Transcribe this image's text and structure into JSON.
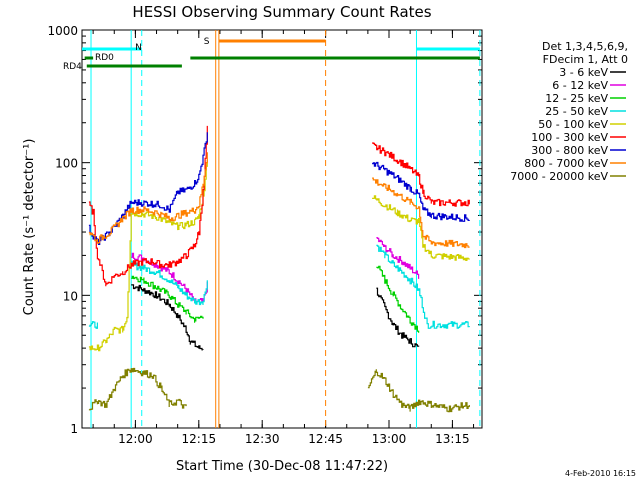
{
  "page": {
    "footer_date": "4-Feb-2010 16:15"
  },
  "chart_data": {
    "type": "line",
    "title": "HESSI Observing Summary Count Rates",
    "xlabel": "Start Time (30-Dec-08 11:47:22)",
    "ylabel": "Count Rate (s⁻¹ detector⁻¹)",
    "y_scale": "log",
    "ylim": [
      1,
      1000
    ],
    "xlim": [
      "11:47:22",
      "13:22:00"
    ],
    "x_ticks": [
      "12:00",
      "12:15",
      "12:30",
      "12:45",
      "13:00",
      "13:15"
    ],
    "y_ticks": [
      "1",
      "10",
      "100",
      "1000"
    ],
    "grid": false,
    "legend": {
      "position": "right",
      "header": [
        "Det 1,3,4,5,6,9,",
        "FDecim 1, Att 0"
      ]
    },
    "series": [
      {
        "name": "3 - 6 keV",
        "color": "#000000",
        "points": [
          [
            "11:53",
            null
          ],
          [
            "11:59",
            12
          ],
          [
            "12:02",
            11
          ],
          [
            "12:05",
            10
          ],
          [
            "12:08",
            8.5
          ],
          [
            "12:10",
            7
          ],
          [
            "12:12",
            5.5
          ],
          [
            "12:13",
            4.5
          ],
          [
            "12:15",
            4
          ],
          [
            "12:16",
            4
          ],
          [
            "12:17",
            null
          ],
          [
            "12:55",
            null
          ],
          [
            "12:57",
            11
          ],
          [
            "12:59",
            8
          ],
          [
            "13:01",
            6
          ],
          [
            "13:03",
            5
          ],
          [
            "13:05",
            4.5
          ],
          [
            "13:07",
            4
          ],
          [
            "13:08",
            null
          ]
        ]
      },
      {
        "name": "6 - 12 keV",
        "color": "#e000e0",
        "points": [
          [
            "11:59",
            20
          ],
          [
            "12:02",
            19
          ],
          [
            "12:05",
            17
          ],
          [
            "12:08",
            15
          ],
          [
            "12:10",
            13
          ],
          [
            "12:12",
            11
          ],
          [
            "12:14",
            9
          ],
          [
            "12:16",
            9
          ],
          [
            "12:17",
            12
          ],
          [
            "12:18",
            null
          ],
          [
            "12:55",
            null
          ],
          [
            "12:57",
            27
          ],
          [
            "12:59",
            23
          ],
          [
            "13:01",
            20
          ],
          [
            "13:03",
            18
          ],
          [
            "13:05",
            16
          ],
          [
            "13:07",
            14
          ],
          [
            "13:08",
            null
          ]
        ]
      },
      {
        "name": "12 - 25 keV",
        "color": "#00d000",
        "points": [
          [
            "11:59",
            14
          ],
          [
            "12:02",
            13
          ],
          [
            "12:05",
            11.5
          ],
          [
            "12:08",
            10
          ],
          [
            "12:10",
            8.5
          ],
          [
            "12:12",
            7.5
          ],
          [
            "12:14",
            6.5
          ],
          [
            "12:16",
            7
          ],
          [
            "12:17",
            null
          ],
          [
            "12:55",
            null
          ],
          [
            "12:57",
            17
          ],
          [
            "12:59",
            13
          ],
          [
            "13:01",
            10
          ],
          [
            "13:03",
            8
          ],
          [
            "13:05",
            6.5
          ],
          [
            "13:07",
            5.5
          ],
          [
            "13:08",
            null
          ]
        ]
      },
      {
        "name": "25 - 50 keV",
        "color": "#00e0e0",
        "points": [
          [
            "11:49",
            6
          ],
          [
            "11:51",
            6
          ],
          [
            "11:53",
            null
          ],
          [
            "11:59",
            17
          ],
          [
            "12:02",
            16
          ],
          [
            "12:05",
            15
          ],
          [
            "12:08",
            13
          ],
          [
            "12:10",
            11.5
          ],
          [
            "12:12",
            10
          ],
          [
            "12:14",
            9
          ],
          [
            "12:16",
            9
          ],
          [
            "12:17",
            13
          ],
          [
            "12:18",
            null
          ],
          [
            "12:55",
            null
          ],
          [
            "12:57",
            24
          ],
          [
            "12:59",
            20
          ],
          [
            "13:01",
            17
          ],
          [
            "13:03",
            15
          ],
          [
            "13:05",
            13
          ],
          [
            "13:07",
            11
          ],
          [
            "13:09",
            6
          ],
          [
            "13:19",
            6
          ]
        ]
      },
      {
        "name": "50 - 100 keV",
        "color": "#d0d000",
        "points": [
          [
            "11:49",
            4
          ],
          [
            "11:51",
            4
          ],
          [
            "11:53",
            4.5
          ],
          [
            "11:55",
            5.5
          ],
          [
            "11:57",
            5.5
          ],
          [
            "11:58",
            7
          ],
          [
            "11:59",
            42
          ],
          [
            "12:02",
            41
          ],
          [
            "12:05",
            39
          ],
          [
            "12:08",
            35
          ],
          [
            "12:10",
            33
          ],
          [
            "12:12",
            34
          ],
          [
            "12:14",
            36
          ],
          [
            "12:15",
            40
          ],
          [
            "12:16",
            55
          ],
          [
            "12:17",
            110
          ],
          [
            "12:18",
            null
          ],
          [
            "12:55",
            null
          ],
          [
            "12:56",
            55
          ],
          [
            "12:59",
            48
          ],
          [
            "13:02",
            42
          ],
          [
            "13:05",
            37
          ],
          [
            "13:07",
            36
          ],
          [
            "13:08",
            24
          ],
          [
            "13:10",
            20
          ],
          [
            "13:19",
            19
          ]
        ]
      },
      {
        "name": "100 - 300 keV",
        "color": "#ff0000",
        "points": [
          [
            "11:49",
            48
          ],
          [
            "11:50",
            42
          ],
          [
            "11:51",
            20
          ],
          [
            "11:53",
            12
          ],
          [
            "11:55",
            14
          ],
          [
            "11:57",
            15
          ],
          [
            "11:59",
            17
          ],
          [
            "12:02",
            18
          ],
          [
            "12:04",
            18
          ],
          [
            "12:06",
            17
          ],
          [
            "12:08",
            17
          ],
          [
            "12:10",
            18
          ],
          [
            "12:12",
            20
          ],
          [
            "12:14",
            24
          ],
          [
            "12:15",
            30
          ],
          [
            "12:16",
            60
          ],
          [
            "12:17",
            180
          ],
          [
            "12:18",
            null
          ],
          [
            "12:55",
            null
          ],
          [
            "12:56",
            135
          ],
          [
            "12:59",
            120
          ],
          [
            "13:02",
            105
          ],
          [
            "13:05",
            90
          ],
          [
            "13:07",
            78
          ],
          [
            "13:08",
            60
          ],
          [
            "13:10",
            50
          ],
          [
            "13:19",
            50
          ]
        ]
      },
      {
        "name": "300 - 800 keV",
        "color": "#0000d0",
        "points": [
          [
            "11:49",
            32
          ],
          [
            "11:50",
            28
          ],
          [
            "11:51",
            25
          ],
          [
            "11:54",
            30
          ],
          [
            "11:57",
            40
          ],
          [
            "11:59",
            50
          ],
          [
            "12:02",
            50
          ],
          [
            "12:04",
            49
          ],
          [
            "12:06",
            48
          ],
          [
            "12:08",
            44
          ],
          [
            "12:10",
            60
          ],
          [
            "12:12",
            62
          ],
          [
            "12:14",
            70
          ],
          [
            "12:15",
            80
          ],
          [
            "12:16",
            110
          ],
          [
            "12:17",
            170
          ],
          [
            "12:18",
            null
          ],
          [
            "12:55",
            null
          ],
          [
            "12:56",
            100
          ],
          [
            "12:59",
            88
          ],
          [
            "13:02",
            76
          ],
          [
            "13:05",
            64
          ],
          [
            "13:07",
            57
          ],
          [
            "13:08",
            44
          ],
          [
            "13:10",
            40
          ],
          [
            "13:19",
            38
          ]
        ]
      },
      {
        "name": "800 - 7000 keV",
        "color": "#ff8000",
        "points": [
          [
            "11:49",
            30
          ],
          [
            "11:51",
            26
          ],
          [
            "11:54",
            30
          ],
          [
            "11:57",
            38
          ],
          [
            "11:59",
            44
          ],
          [
            "12:02",
            44
          ],
          [
            "12:04",
            43
          ],
          [
            "12:06",
            41
          ],
          [
            "12:08",
            38
          ],
          [
            "12:10",
            40
          ],
          [
            "12:12",
            42
          ],
          [
            "12:14",
            44
          ],
          [
            "12:15",
            48
          ],
          [
            "12:16",
            70
          ],
          [
            "12:17",
            120
          ],
          [
            "12:18",
            null
          ],
          [
            "12:55",
            null
          ],
          [
            "12:56",
            75
          ],
          [
            "12:59",
            66
          ],
          [
            "13:02",
            58
          ],
          [
            "13:05",
            50
          ],
          [
            "13:07",
            46
          ],
          [
            "13:08",
            28
          ],
          [
            "13:10",
            25
          ],
          [
            "13:19",
            24
          ]
        ]
      },
      {
        "name": "7000 - 20000 keV",
        "color": "#808000",
        "points": [
          [
            "11:49",
            1.4
          ],
          [
            "11:51",
            1.6
          ],
          [
            "11:53",
            1.5
          ],
          [
            "11:55",
            2
          ],
          [
            "11:57",
            2.5
          ],
          [
            "11:59",
            2.8
          ],
          [
            "12:02",
            2.6
          ],
          [
            "12:04",
            2.5
          ],
          [
            "12:06",
            2
          ],
          [
            "12:08",
            1.5
          ],
          [
            "12:10",
            1.6
          ],
          [
            "12:12",
            1.4
          ],
          [
            "12:13",
            null
          ],
          [
            "12:55",
            null
          ],
          [
            "12:55",
            2
          ],
          [
            "12:57",
            2.7
          ],
          [
            "12:59",
            2.3
          ],
          [
            "13:01",
            1.8
          ],
          [
            "13:03",
            1.5
          ],
          [
            "13:05",
            1.4
          ],
          [
            "13:07",
            1.6
          ],
          [
            "13:10",
            1.5
          ],
          [
            "13:14",
            1.4
          ],
          [
            "13:19",
            1.5
          ]
        ]
      }
    ],
    "annotations": {
      "cyan_bar_label": "N",
      "orange_bar_label": "S",
      "green_label_1": "RD0",
      "green_label_2": "RD4",
      "cyan_lines": [
        "11:49:30",
        "11:59:00",
        "12:01:30",
        "13:06:30",
        "13:21:30"
      ],
      "orange_lines": [
        "12:19:00",
        "12:19:45",
        "12:45:00"
      ],
      "cyan_bars": [
        [
          "11:47:22",
          "12:01:30"
        ],
        [
          "13:06:30",
          "13:21:30"
        ]
      ],
      "orange_bar": [
        "12:19:45",
        "12:45:00"
      ],
      "green_bars_upper": [
        [
          "11:48:00",
          "11:50:00"
        ],
        [
          "12:13:00",
          "13:21:30"
        ]
      ],
      "green_bars_lower": [
        [
          "11:48:30",
          "12:11:00"
        ]
      ],
      "colors": {
        "cyan": "#00ffff",
        "orange": "#ff8000",
        "green": "#008000"
      }
    }
  }
}
